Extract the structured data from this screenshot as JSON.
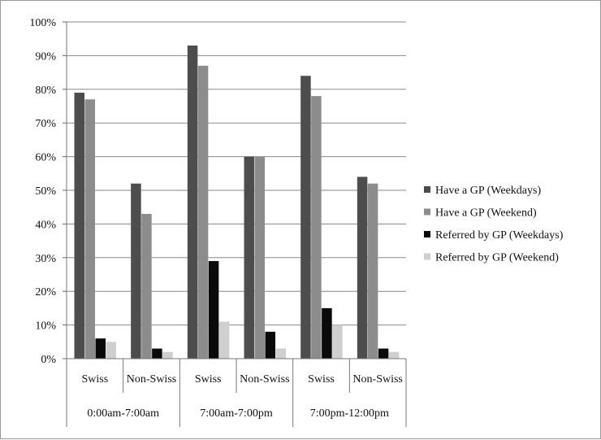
{
  "chart_data": {
    "type": "bar",
    "title": "",
    "xlabel": "",
    "ylabel": "",
    "ylim": [
      0,
      100
    ],
    "y_ticks": [
      "0%",
      "10%",
      "20%",
      "30%",
      "40%",
      "50%",
      "60%",
      "70%",
      "80%",
      "90%",
      "100%"
    ],
    "categories": [
      "Swiss",
      "Non-Swiss",
      "Swiss",
      "Non-Swiss",
      "Swiss",
      "Non-Swiss"
    ],
    "groups": [
      "0:00am-7:00am",
      "7:00am-7:00pm",
      "7:00pm-12:00pm"
    ],
    "series": [
      {
        "name": "Have a GP (Weekdays)",
        "color": "#4d4d4d",
        "values": [
          79,
          52,
          93,
          60,
          84,
          54
        ]
      },
      {
        "name": "Have a GP (Weekend)",
        "color": "#8c8c8c",
        "values": [
          77,
          43,
          87,
          60,
          78,
          52
        ]
      },
      {
        "name": "Referred by GP (Weekdays)",
        "color": "#0a0a0a",
        "values": [
          6,
          3,
          29,
          8,
          15,
          3
        ]
      },
      {
        "name": "Referred by GP (Weekend)",
        "color": "#cfcfcf",
        "values": [
          5,
          2,
          11,
          3,
          10,
          2
        ]
      }
    ],
    "grid": true,
    "legend_position": "right"
  }
}
